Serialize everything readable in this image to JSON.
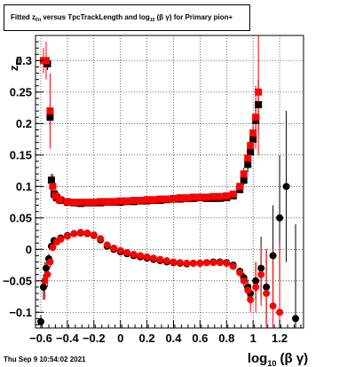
{
  "chart_data": {
    "type": "scatter",
    "title": "Fitted z_Fit versus TpcTrackLength and log_10(β γ) for Primary pion+",
    "title_parts": {
      "prefix": "Fitted  z",
      "sub1": "Fit",
      "middle": "  versus TpcTrackLength and log",
      "sub2": "10",
      "suffix": " (β  γ) for Primary pion+"
    },
    "xlabel": "log₁₀ (β γ)",
    "ylabel": "z_Fit",
    "xlim": [
      -0.64,
      1.38
    ],
    "ylim": [
      -0.125,
      0.34
    ],
    "x_ticks": [
      -0.6,
      -0.4,
      -0.2,
      0,
      0.2,
      0.4,
      0.6,
      0.8,
      1,
      1.2
    ],
    "x_tick_labels": [
      "−0.6",
      "−0.4",
      "−0.2",
      "0",
      "0.2",
      "0.4",
      "0.6",
      "0.8",
      "1",
      "1.2"
    ],
    "y_ticks": [
      -0.1,
      -0.05,
      0,
      0.05,
      0.1,
      0.15,
      0.2,
      0.25,
      0.3
    ],
    "y_tick_labels": [
      "−0.1",
      "−0.05",
      "0",
      "0.05",
      "0.1",
      "0.15",
      "0.2",
      "0.25",
      "0.3"
    ],
    "grid": true,
    "series": [
      {
        "marker": "square",
        "color": "#000000",
        "points": [
          [
            -0.55,
            0.295,
            0.01
          ],
          [
            -0.53,
            0.21,
            0.02
          ],
          [
            -0.52,
            0.11,
            0.01
          ],
          [
            -0.5,
            0.088,
            0.004
          ],
          [
            -0.48,
            0.082,
            0.003
          ],
          [
            -0.45,
            0.078,
            0.002
          ],
          [
            -0.4,
            0.075,
            0.002
          ],
          [
            -0.35,
            0.074,
            0.002
          ],
          [
            -0.3,
            0.073,
            0.002
          ],
          [
            -0.25,
            0.074,
            0.002
          ],
          [
            -0.2,
            0.074,
            0.002
          ],
          [
            -0.15,
            0.074,
            0.002
          ],
          [
            -0.1,
            0.075,
            0.002
          ],
          [
            -0.05,
            0.075,
            0.002
          ],
          [
            0.0,
            0.075,
            0.002
          ],
          [
            0.05,
            0.076,
            0.002
          ],
          [
            0.1,
            0.076,
            0.002
          ],
          [
            0.15,
            0.077,
            0.002
          ],
          [
            0.2,
            0.077,
            0.002
          ],
          [
            0.25,
            0.078,
            0.002
          ],
          [
            0.3,
            0.078,
            0.002
          ],
          [
            0.35,
            0.079,
            0.002
          ],
          [
            0.4,
            0.08,
            0.002
          ],
          [
            0.45,
            0.08,
            0.002
          ],
          [
            0.5,
            0.081,
            0.002
          ],
          [
            0.55,
            0.081,
            0.002
          ],
          [
            0.6,
            0.082,
            0.002
          ],
          [
            0.65,
            0.081,
            0.002
          ],
          [
            0.7,
            0.081,
            0.002
          ],
          [
            0.75,
            0.081,
            0.002
          ],
          [
            0.8,
            0.082,
            0.003
          ],
          [
            0.85,
            0.085,
            0.004
          ],
          [
            0.9,
            0.095,
            0.006
          ],
          [
            0.93,
            0.11,
            0.008
          ],
          [
            0.96,
            0.135,
            0.012
          ],
          [
            0.98,
            0.155,
            0.015
          ],
          [
            1.0,
            0.175,
            0.02
          ],
          [
            1.02,
            0.205,
            0.03
          ],
          [
            1.04,
            0.23,
            0.04
          ]
        ]
      },
      {
        "marker": "circle",
        "color": "#000000",
        "points": [
          [
            -0.6,
            -0.115,
            0.01
          ],
          [
            -0.58,
            -0.06,
            0.02
          ],
          [
            -0.56,
            -0.03,
            0.01
          ],
          [
            -0.54,
            -0.015,
            0.008
          ],
          [
            -0.52,
            0.005,
            0.006
          ],
          [
            -0.5,
            0.014,
            0.004
          ],
          [
            -0.45,
            0.018,
            0.003
          ],
          [
            -0.4,
            0.022,
            0.003
          ],
          [
            -0.35,
            0.025,
            0.002
          ],
          [
            -0.3,
            0.026,
            0.002
          ],
          [
            -0.25,
            0.025,
            0.002
          ],
          [
            -0.2,
            0.022,
            0.002
          ],
          [
            -0.15,
            0.015,
            0.002
          ],
          [
            -0.1,
            0.005,
            0.002
          ],
          [
            -0.05,
            0.0,
            0.002
          ],
          [
            0.0,
            -0.004,
            0.002
          ],
          [
            0.05,
            -0.007,
            0.002
          ],
          [
            0.1,
            -0.01,
            0.002
          ],
          [
            0.15,
            -0.012,
            0.002
          ],
          [
            0.2,
            -0.014,
            0.002
          ],
          [
            0.25,
            -0.016,
            0.002
          ],
          [
            0.3,
            -0.018,
            0.002
          ],
          [
            0.35,
            -0.02,
            0.002
          ],
          [
            0.4,
            -0.021,
            0.002
          ],
          [
            0.45,
            -0.022,
            0.002
          ],
          [
            0.5,
            -0.023,
            0.002
          ],
          [
            0.55,
            -0.022,
            0.002
          ],
          [
            0.6,
            -0.022,
            0.002
          ],
          [
            0.65,
            -0.021,
            0.002
          ],
          [
            0.7,
            -0.02,
            0.002
          ],
          [
            0.75,
            -0.02,
            0.002
          ],
          [
            0.8,
            -0.021,
            0.003
          ],
          [
            0.85,
            -0.025,
            0.004
          ],
          [
            0.9,
            -0.035,
            0.006
          ],
          [
            0.93,
            -0.045,
            0.008
          ],
          [
            0.96,
            -0.06,
            0.012
          ],
          [
            0.98,
            -0.07,
            0.015
          ],
          [
            1.02,
            -0.05,
            0.03
          ],
          [
            1.06,
            -0.03,
            0.05
          ],
          [
            1.1,
            -0.06,
            0.06
          ],
          [
            1.15,
            -0.01,
            0.08
          ],
          [
            1.2,
            0.05,
            0.1
          ],
          [
            1.25,
            0.1,
            0.12
          ],
          [
            1.32,
            -0.11,
            0.15
          ]
        ]
      },
      {
        "marker": "square",
        "color": "#ff0000",
        "points": [
          [
            -0.58,
            0.3,
            0.02
          ],
          [
            -0.56,
            0.3,
            0.03
          ],
          [
            -0.53,
            0.22,
            0.06
          ],
          [
            -0.51,
            0.1,
            0.02
          ],
          [
            -0.49,
            0.085,
            0.006
          ],
          [
            -0.46,
            0.079,
            0.003
          ],
          [
            -0.4,
            0.076,
            0.002
          ],
          [
            -0.35,
            0.075,
            0.002
          ],
          [
            -0.3,
            0.075,
            0.002
          ],
          [
            -0.25,
            0.075,
            0.002
          ],
          [
            -0.2,
            0.075,
            0.002
          ],
          [
            -0.15,
            0.076,
            0.002
          ],
          [
            -0.1,
            0.076,
            0.002
          ],
          [
            -0.05,
            0.076,
            0.002
          ],
          [
            0.0,
            0.077,
            0.002
          ],
          [
            0.05,
            0.077,
            0.002
          ],
          [
            0.1,
            0.078,
            0.002
          ],
          [
            0.15,
            0.078,
            0.002
          ],
          [
            0.2,
            0.079,
            0.002
          ],
          [
            0.25,
            0.079,
            0.002
          ],
          [
            0.3,
            0.08,
            0.002
          ],
          [
            0.35,
            0.08,
            0.002
          ],
          [
            0.4,
            0.081,
            0.002
          ],
          [
            0.45,
            0.082,
            0.002
          ],
          [
            0.5,
            0.082,
            0.002
          ],
          [
            0.55,
            0.083,
            0.002
          ],
          [
            0.6,
            0.083,
            0.002
          ],
          [
            0.65,
            0.083,
            0.002
          ],
          [
            0.7,
            0.084,
            0.002
          ],
          [
            0.75,
            0.084,
            0.002
          ],
          [
            0.8,
            0.085,
            0.003
          ],
          [
            0.85,
            0.088,
            0.004
          ],
          [
            0.9,
            0.1,
            0.006
          ],
          [
            0.93,
            0.12,
            0.01
          ],
          [
            0.96,
            0.145,
            0.015
          ],
          [
            0.98,
            0.165,
            0.02
          ],
          [
            1.0,
            0.185,
            0.03
          ],
          [
            1.02,
            0.21,
            0.05
          ],
          [
            1.04,
            0.25,
            0.1
          ]
        ]
      },
      {
        "marker": "circle",
        "color": "#ff0000",
        "points": [
          [
            -0.57,
            -0.05,
            0.03
          ],
          [
            -0.55,
            -0.04,
            0.02
          ],
          [
            -0.53,
            -0.02,
            0.01
          ],
          [
            -0.51,
            0.003,
            0.006
          ],
          [
            -0.48,
            0.012,
            0.004
          ],
          [
            -0.45,
            0.016,
            0.003
          ],
          [
            -0.4,
            0.021,
            0.003
          ],
          [
            -0.35,
            0.025,
            0.002
          ],
          [
            -0.3,
            0.027,
            0.002
          ],
          [
            -0.25,
            0.026,
            0.002
          ],
          [
            -0.2,
            0.023,
            0.002
          ],
          [
            -0.15,
            0.017,
            0.002
          ],
          [
            -0.1,
            0.007,
            0.002
          ],
          [
            -0.05,
            0.002,
            0.002
          ],
          [
            0.0,
            -0.002,
            0.002
          ],
          [
            0.05,
            -0.005,
            0.002
          ],
          [
            0.1,
            -0.008,
            0.002
          ],
          [
            0.15,
            -0.01,
            0.002
          ],
          [
            0.2,
            -0.012,
            0.002
          ],
          [
            0.25,
            -0.014,
            0.002
          ],
          [
            0.3,
            -0.016,
            0.002
          ],
          [
            0.35,
            -0.018,
            0.002
          ],
          [
            0.4,
            -0.02,
            0.002
          ],
          [
            0.45,
            -0.021,
            0.002
          ],
          [
            0.5,
            -0.022,
            0.002
          ],
          [
            0.55,
            -0.022,
            0.002
          ],
          [
            0.6,
            -0.022,
            0.002
          ],
          [
            0.65,
            -0.021,
            0.002
          ],
          [
            0.7,
            -0.021,
            0.002
          ],
          [
            0.75,
            -0.021,
            0.002
          ],
          [
            0.8,
            -0.022,
            0.003
          ],
          [
            0.85,
            -0.027,
            0.004
          ],
          [
            0.9,
            -0.037,
            0.007
          ],
          [
            0.93,
            -0.05,
            0.01
          ],
          [
            0.96,
            -0.065,
            0.015
          ],
          [
            0.98,
            -0.08,
            0.02
          ],
          [
            1.02,
            -0.06,
            0.04
          ],
          [
            1.06,
            -0.04,
            0.05
          ],
          [
            1.1,
            -0.07,
            0.07
          ],
          [
            1.15,
            -0.09,
            0.09
          ],
          [
            1.2,
            -0.1,
            0.11
          ]
        ]
      }
    ]
  },
  "footer": {
    "timestamp": "Thu Sep  9 10:54:02 2021"
  }
}
